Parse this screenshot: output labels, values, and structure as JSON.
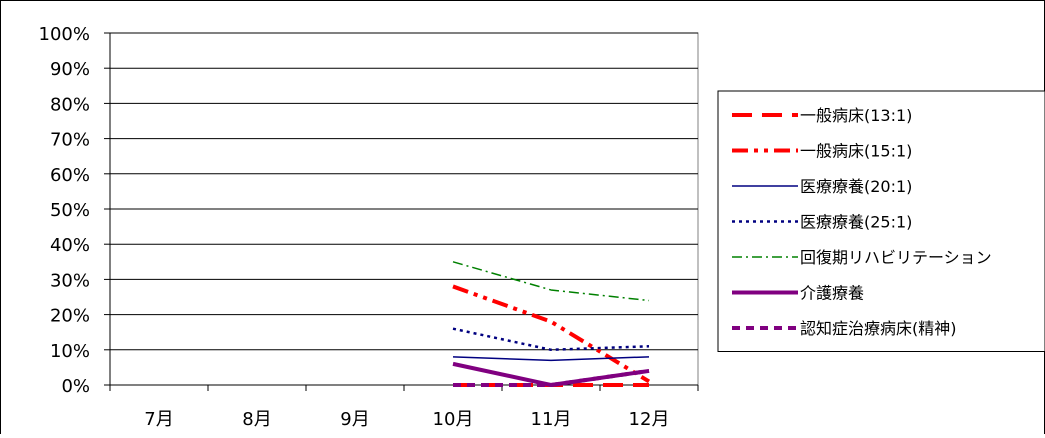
{
  "chart_data": {
    "type": "line",
    "categories": [
      "7月",
      "8月",
      "9月",
      "10月",
      "11月",
      "12月"
    ],
    "y_ticks": [
      "0%",
      "10%",
      "20%",
      "30%",
      "40%",
      "50%",
      "60%",
      "70%",
      "80%",
      "90%",
      "100%"
    ],
    "ylim": [
      0,
      100
    ],
    "grid": true,
    "legend_position": "right",
    "series": [
      {
        "name": "一般病床(13:1)",
        "color": "#ff0000",
        "dash": "long-dash",
        "weight": "thick",
        "values": [
          null,
          null,
          null,
          0,
          0,
          0
        ]
      },
      {
        "name": "一般病床(15:1)",
        "color": "#ff0000",
        "dash": "dash-dot-dot",
        "weight": "thick",
        "values": [
          null,
          null,
          null,
          28,
          18,
          1
        ]
      },
      {
        "name": "医療療養(20:1)",
        "color": "#000080",
        "dash": "solid",
        "weight": "thin",
        "values": [
          null,
          null,
          null,
          8,
          7,
          8
        ]
      },
      {
        "name": "医療療養(25:1)",
        "color": "#000080",
        "dash": "dotted",
        "weight": "medium",
        "values": [
          null,
          null,
          null,
          16,
          10,
          11
        ]
      },
      {
        "name": "回復期リハビリテーション",
        "color": "#008000",
        "dash": "dash-dot",
        "weight": "thin",
        "values": [
          null,
          null,
          null,
          35,
          27,
          24
        ]
      },
      {
        "name": "介護療養",
        "color": "#800080",
        "dash": "solid",
        "weight": "thick",
        "values": [
          null,
          null,
          null,
          6,
          0,
          4
        ]
      },
      {
        "name": "認知症治療病床(精神)",
        "color": "#800080",
        "dash": "short-dash",
        "weight": "thick",
        "values": [
          null,
          null,
          null,
          0,
          0,
          4
        ]
      }
    ]
  }
}
